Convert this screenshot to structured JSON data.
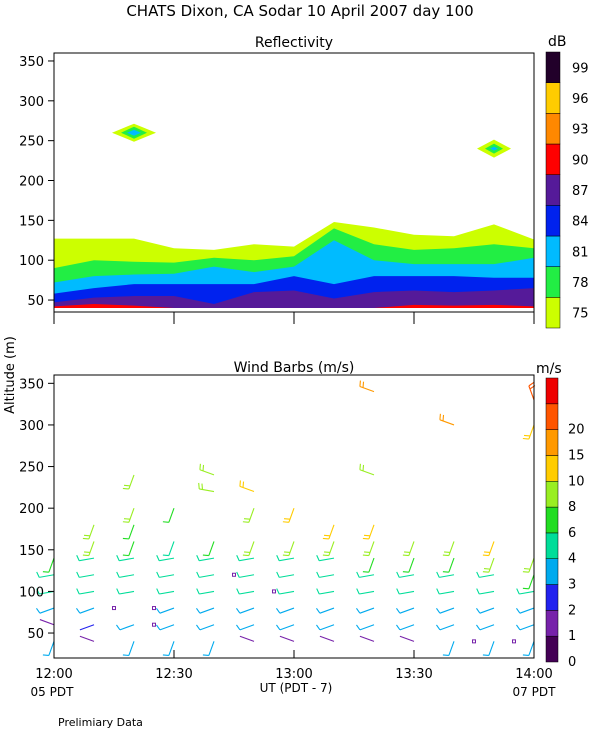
{
  "page": {
    "title": "CHATS Dixon, CA  Sodar   10 April 2007   day 100",
    "y_label": "Altitude (m)",
    "footer_note": "Prelimiary Data"
  },
  "x_axis": {
    "label": "UT  (PDT - 7)",
    "ticks": [
      "12:00",
      "12:30",
      "13:00",
      "13:30",
      "14:00"
    ],
    "start_note": "05 PDT",
    "end_note": "07 PDT"
  },
  "chart_data": [
    {
      "type": "area",
      "title": "Reflectivity",
      "xlabel": "UT  (PDT - 7)",
      "ylabel": "Altitude (m)",
      "xlim": [
        "12:00",
        "14:00"
      ],
      "ylim": [
        35,
        360
      ],
      "y_ticks": [
        50,
        100,
        150,
        200,
        250,
        300,
        350
      ],
      "colorbar": {
        "unit": "dB",
        "levels": [
          {
            "label": "75",
            "color": "#ccff00"
          },
          {
            "label": "78",
            "color": "#22ee44"
          },
          {
            "label": "81",
            "color": "#00bbff"
          },
          {
            "label": "84",
            "color": "#0022ee"
          },
          {
            "label": "87",
            "color": "#551a99"
          },
          {
            "label": "90",
            "color": "#ff0000"
          },
          {
            "label": "93",
            "color": "#ff8800"
          },
          {
            "label": "96",
            "color": "#ffcc00"
          },
          {
            "label": "99",
            "color": "#22002a"
          }
        ]
      },
      "x_minutes": [
        0,
        10,
        20,
        30,
        40,
        50,
        60,
        70,
        80,
        90,
        100,
        110,
        120
      ],
      "x_times": [
        "12:00",
        "12:10",
        "12:20",
        "12:30",
        "12:40",
        "12:50",
        "13:00",
        "13:10",
        "13:20",
        "13:30",
        "13:40",
        "13:50",
        "14:00"
      ],
      "base_altitude": 40,
      "layers": [
        {
          "level": "75",
          "top": [
            127,
            127,
            127,
            115,
            113,
            120,
            117,
            148,
            141,
            132,
            130,
            145,
            126
          ]
        },
        {
          "level": "78",
          "top": [
            90,
            100,
            98,
            97,
            103,
            100,
            105,
            140,
            120,
            113,
            115,
            120,
            115
          ]
        },
        {
          "level": "81",
          "top": [
            72,
            80,
            82,
            83,
            92,
            85,
            92,
            125,
            100,
            95,
            95,
            95,
            103
          ]
        },
        {
          "level": "84",
          "top": [
            58,
            65,
            70,
            70,
            70,
            70,
            80,
            70,
            80,
            80,
            80,
            78,
            78
          ]
        },
        {
          "level": "87",
          "top": [
            47,
            53,
            55,
            55,
            45,
            60,
            62,
            52,
            60,
            62,
            60,
            62,
            65
          ]
        },
        {
          "level": "90",
          "top": [
            42,
            45,
            43,
            40,
            40,
            40,
            40,
            40,
            40,
            44,
            43,
            44,
            42
          ]
        }
      ],
      "blobs": [
        {
          "x_minutes": 20,
          "altitude": 260,
          "levels": [
            "75",
            "78",
            "81"
          ]
        },
        {
          "x_minutes": 110,
          "altitude": 240,
          "levels": [
            "75",
            "78",
            "81"
          ]
        }
      ]
    },
    {
      "type": "scatter",
      "title": "Wind Barbs (m/s)",
      "xlabel": "UT  (PDT - 7)",
      "ylabel": "Altitude (m)",
      "xlim": [
        "12:00",
        "14:00"
      ],
      "ylim": [
        20,
        360
      ],
      "y_ticks": [
        50,
        100,
        150,
        200,
        250,
        300,
        350
      ],
      "colorbar": {
        "unit": "m/s",
        "levels": [
          {
            "label": "0",
            "color": "#440055"
          },
          {
            "label": "1",
            "color": "#7722aa"
          },
          {
            "label": "2",
            "color": "#2222ee"
          },
          {
            "label": "3",
            "color": "#00aaee"
          },
          {
            "label": "4",
            "color": "#00dd99"
          },
          {
            "label": "6",
            "color": "#22dd22"
          },
          {
            "label": "8",
            "color": "#99ee22"
          },
          {
            "label": "10",
            "color": "#ffcc00"
          },
          {
            "label": "15",
            "color": "#ff9900"
          },
          {
            "label": "20",
            "color": "#ff5500"
          },
          {
            "label": "",
            "color": "#ee0000"
          }
        ]
      },
      "barb_x_minutes": [
        0,
        10,
        20,
        30,
        40,
        50,
        60,
        70,
        80,
        90,
        100,
        110,
        120
      ],
      "barb_altitudes": [
        40,
        60,
        80,
        100,
        120,
        140,
        160,
        180,
        200,
        220,
        240,
        260,
        280,
        300,
        320,
        340
      ],
      "barbs": [
        {
          "t": 0,
          "z": 40,
          "s": 3,
          "d": 200
        },
        {
          "t": 0,
          "z": 60,
          "s": 1,
          "d": 290
        },
        {
          "t": 0,
          "z": 80,
          "s": 3,
          "d": 250
        },
        {
          "t": 0,
          "z": 100,
          "s": 4,
          "d": 260
        },
        {
          "t": 0,
          "z": 120,
          "s": 5,
          "d": 260
        },
        {
          "t": 0,
          "z": 140,
          "s": 7,
          "d": 200
        },
        {
          "t": 10,
          "z": 40,
          "s": 1,
          "d": 290
        },
        {
          "t": 10,
          "z": 60,
          "s": 2,
          "d": 250
        },
        {
          "t": 10,
          "z": 80,
          "s": 3,
          "d": 250
        },
        {
          "t": 10,
          "z": 100,
          "s": 4,
          "d": 260
        },
        {
          "t": 10,
          "z": 120,
          "s": 4,
          "d": 260
        },
        {
          "t": 10,
          "z": 140,
          "s": 5,
          "d": 260
        },
        {
          "t": 10,
          "z": 160,
          "s": 8,
          "d": 200
        },
        {
          "t": 10,
          "z": 180,
          "s": 9,
          "d": 200
        },
        {
          "t": 20,
          "z": 40,
          "s": 3,
          "d": 200
        },
        {
          "t": 20,
          "z": 60,
          "s": 3,
          "d": 250
        },
        {
          "t": 20,
          "z": 100,
          "s": 4,
          "d": 260
        },
        {
          "t": 20,
          "z": 120,
          "s": 4,
          "d": 260
        },
        {
          "t": 20,
          "z": 140,
          "s": 5,
          "d": 260
        },
        {
          "t": 20,
          "z": 160,
          "s": 6,
          "d": 200
        },
        {
          "t": 20,
          "z": 180,
          "s": 7,
          "d": 200
        },
        {
          "t": 20,
          "z": 200,
          "s": 8,
          "d": 200
        },
        {
          "t": 20,
          "z": 240,
          "s": 9,
          "d": 200
        },
        {
          "t": 30,
          "z": 40,
          "s": 3,
          "d": 200
        },
        {
          "t": 30,
          "z": 60,
          "s": 3,
          "d": 250
        },
        {
          "t": 30,
          "z": 80,
          "s": 3,
          "d": 250
        },
        {
          "t": 30,
          "z": 100,
          "s": 4,
          "d": 260
        },
        {
          "t": 30,
          "z": 120,
          "s": 4,
          "d": 260
        },
        {
          "t": 30,
          "z": 140,
          "s": 4,
          "d": 260
        },
        {
          "t": 30,
          "z": 160,
          "s": 5,
          "d": 200
        },
        {
          "t": 30,
          "z": 200,
          "s": 7,
          "d": 200
        },
        {
          "t": 40,
          "z": 40,
          "s": 3,
          "d": 200
        },
        {
          "t": 40,
          "z": 60,
          "s": 3,
          "d": 250
        },
        {
          "t": 40,
          "z": 80,
          "s": 3,
          "d": 250
        },
        {
          "t": 40,
          "z": 100,
          "s": 4,
          "d": 260
        },
        {
          "t": 40,
          "z": 120,
          "s": 4,
          "d": 260
        },
        {
          "t": 40,
          "z": 140,
          "s": 4,
          "d": 260
        },
        {
          "t": 40,
          "z": 160,
          "s": 7,
          "d": 200
        },
        {
          "t": 40,
          "z": 220,
          "s": 8,
          "d": 280
        },
        {
          "t": 40,
          "z": 240,
          "s": 9,
          "d": 290
        },
        {
          "t": 50,
          "z": 40,
          "s": 1,
          "d": 290
        },
        {
          "t": 50,
          "z": 60,
          "s": 3,
          "d": 250
        },
        {
          "t": 50,
          "z": 80,
          "s": 3,
          "d": 250
        },
        {
          "t": 50,
          "z": 100,
          "s": 4,
          "d": 260
        },
        {
          "t": 50,
          "z": 120,
          "s": 4,
          "d": 260
        },
        {
          "t": 50,
          "z": 140,
          "s": 4,
          "d": 260
        },
        {
          "t": 50,
          "z": 160,
          "s": 8,
          "d": 200
        },
        {
          "t": 50,
          "z": 200,
          "s": 9,
          "d": 200
        },
        {
          "t": 50,
          "z": 220,
          "s": 10,
          "d": 290
        },
        {
          "t": 60,
          "z": 40,
          "s": 1,
          "d": 290
        },
        {
          "t": 60,
          "z": 60,
          "s": 3,
          "d": 250
        },
        {
          "t": 60,
          "z": 80,
          "s": 3,
          "d": 250
        },
        {
          "t": 60,
          "z": 100,
          "s": 4,
          "d": 260
        },
        {
          "t": 60,
          "z": 120,
          "s": 4,
          "d": 260
        },
        {
          "t": 60,
          "z": 140,
          "s": 5,
          "d": 260
        },
        {
          "t": 60,
          "z": 160,
          "s": 8,
          "d": 200
        },
        {
          "t": 60,
          "z": 200,
          "s": 12,
          "d": 200
        },
        {
          "t": 70,
          "z": 40,
          "s": 1,
          "d": 290
        },
        {
          "t": 70,
          "z": 60,
          "s": 3,
          "d": 250
        },
        {
          "t": 70,
          "z": 80,
          "s": 3,
          "d": 250
        },
        {
          "t": 70,
          "z": 100,
          "s": 4,
          "d": 260
        },
        {
          "t": 70,
          "z": 120,
          "s": 4,
          "d": 260
        },
        {
          "t": 70,
          "z": 140,
          "s": 5,
          "d": 260
        },
        {
          "t": 70,
          "z": 160,
          "s": 9,
          "d": 200
        },
        {
          "t": 70,
          "z": 180,
          "s": 10,
          "d": 200
        },
        {
          "t": 80,
          "z": 40,
          "s": 1,
          "d": 290
        },
        {
          "t": 80,
          "z": 60,
          "s": 3,
          "d": 250
        },
        {
          "t": 80,
          "z": 80,
          "s": 3,
          "d": 250
        },
        {
          "t": 80,
          "z": 100,
          "s": 4,
          "d": 260
        },
        {
          "t": 80,
          "z": 120,
          "s": 4,
          "d": 260
        },
        {
          "t": 80,
          "z": 140,
          "s": 6,
          "d": 200
        },
        {
          "t": 80,
          "z": 160,
          "s": 9,
          "d": 200
        },
        {
          "t": 80,
          "z": 180,
          "s": 14,
          "d": 200
        },
        {
          "t": 80,
          "z": 240,
          "s": 8,
          "d": 290
        },
        {
          "t": 80,
          "z": 340,
          "s": 15,
          "d": 290
        },
        {
          "t": 90,
          "z": 40,
          "s": 1,
          "d": 290
        },
        {
          "t": 90,
          "z": 60,
          "s": 3,
          "d": 250
        },
        {
          "t": 90,
          "z": 80,
          "s": 3,
          "d": 250
        },
        {
          "t": 90,
          "z": 100,
          "s": 4,
          "d": 260
        },
        {
          "t": 90,
          "z": 120,
          "s": 4,
          "d": 260
        },
        {
          "t": 90,
          "z": 140,
          "s": 6,
          "d": 200
        },
        {
          "t": 90,
          "z": 160,
          "s": 9,
          "d": 200
        },
        {
          "t": 100,
          "z": 40,
          "s": 3,
          "d": 200
        },
        {
          "t": 100,
          "z": 60,
          "s": 3,
          "d": 250
        },
        {
          "t": 100,
          "z": 80,
          "s": 3,
          "d": 250
        },
        {
          "t": 100,
          "z": 100,
          "s": 4,
          "d": 260
        },
        {
          "t": 100,
          "z": 120,
          "s": 4,
          "d": 260
        },
        {
          "t": 100,
          "z": 140,
          "s": 7,
          "d": 200
        },
        {
          "t": 100,
          "z": 160,
          "s": 9,
          "d": 200
        },
        {
          "t": 100,
          "z": 300,
          "s": 15,
          "d": 290
        },
        {
          "t": 110,
          "z": 40,
          "s": 3,
          "d": 200
        },
        {
          "t": 110,
          "z": 60,
          "s": 3,
          "d": 250
        },
        {
          "t": 110,
          "z": 80,
          "s": 3,
          "d": 250
        },
        {
          "t": 110,
          "z": 100,
          "s": 4,
          "d": 260
        },
        {
          "t": 110,
          "z": 120,
          "s": 5,
          "d": 260
        },
        {
          "t": 110,
          "z": 140,
          "s": 8,
          "d": 200
        },
        {
          "t": 110,
          "z": 160,
          "s": 10,
          "d": 200
        },
        {
          "t": 120,
          "z": 40,
          "s": 3,
          "d": 200
        },
        {
          "t": 120,
          "z": 60,
          "s": 3,
          "d": 250
        },
        {
          "t": 120,
          "z": 80,
          "s": 3,
          "d": 250
        },
        {
          "t": 120,
          "z": 100,
          "s": 4,
          "d": 260
        },
        {
          "t": 120,
          "z": 120,
          "s": 7,
          "d": 200
        },
        {
          "t": 120,
          "z": 140,
          "s": 8,
          "d": 200
        },
        {
          "t": 120,
          "z": 300,
          "s": 10,
          "d": 200
        },
        {
          "t": 120,
          "z": 330,
          "s": 20,
          "d": 340
        }
      ],
      "calm_points": [
        {
          "t": 15,
          "z": 80
        },
        {
          "t": 25,
          "z": 80
        },
        {
          "t": 25,
          "z": 60
        },
        {
          "t": 45,
          "z": 120
        },
        {
          "t": 55,
          "z": 100
        },
        {
          "t": 105,
          "z": 40
        },
        {
          "t": 115,
          "z": 40
        }
      ]
    }
  ]
}
